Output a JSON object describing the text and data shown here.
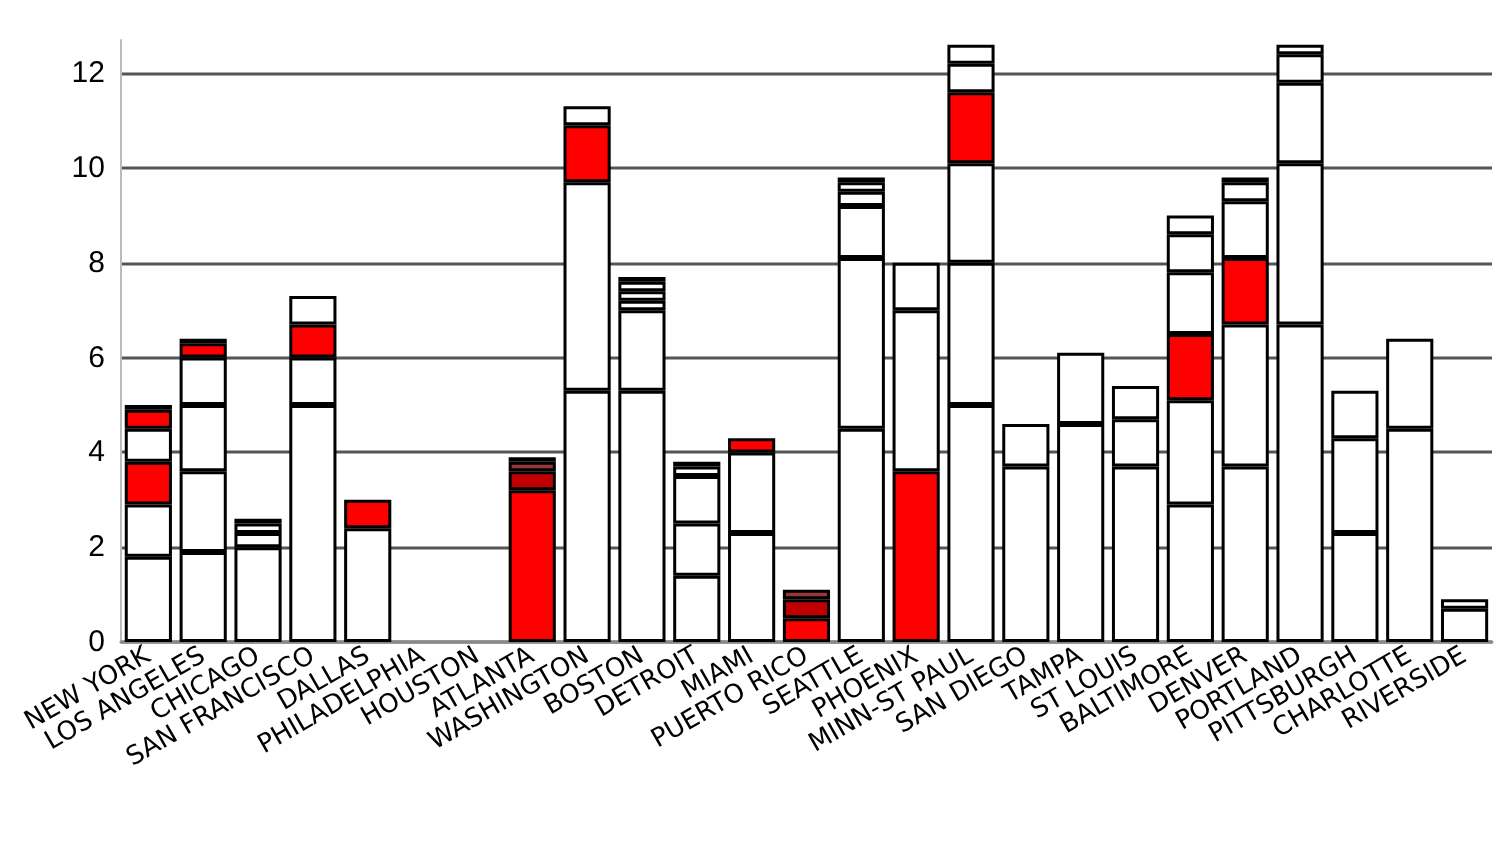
{
  "chart_data": {
    "type": "bar",
    "stacked": true,
    "grid": "y",
    "categories": [
      "NEW YORK",
      "LOS ANGELES",
      "CHICAGO",
      "SAN FRANCISCO",
      "DALLAS",
      "PHILADELPHIA",
      "HOUSTON",
      "ATLANTA",
      "WASHINGTON",
      "BOSTON",
      "DETROIT",
      "MIAMI",
      "PUERTO RICO",
      "SEATTLE",
      "PHOENIX",
      "MINN-ST PAUL",
      "SAN DIEGO",
      "TAMPA",
      "ST LOUIS",
      "BALTIMORE",
      "DENVER",
      "PORTLAND",
      "PITTSBURGH",
      "CHARLOTTE",
      "RIVERSIDE"
    ],
    "ylim": [
      0,
      12.7
    ],
    "yticks": [
      0,
      2,
      4,
      6,
      8,
      10,
      12
    ],
    "series": [
      {
        "values": [
          1.8,
          1.9,
          2.0,
          5.0,
          2.4,
          null,
          null,
          3.2,
          5.3,
          5.3,
          1.4,
          2.3,
          0.5,
          4.5,
          3.6,
          5.0,
          3.7,
          4.6,
          3.7,
          2.9,
          3.7,
          6.7,
          2.3,
          4.5,
          0.7
        ],
        "colors": [
          "#ffffff",
          "#ffffff",
          "#ffffff",
          "#ffffff",
          "#ffffff",
          null,
          null,
          "#ff0000",
          "#ffffff",
          "#ffffff",
          "#ffffff",
          "#ffffff",
          "#ff0000",
          "#ffffff",
          "#ff0000",
          "#ffffff",
          "#ffffff",
          "#ffffff",
          "#ffffff",
          "#ffffff",
          "#ffffff",
          "#ffffff",
          "#ffffff",
          "#ffffff",
          "#ffffff"
        ]
      },
      {
        "values": [
          1.1,
          1.7,
          0.3,
          1.0,
          0.6,
          null,
          null,
          0.4,
          4.4,
          1.7,
          1.1,
          1.7,
          0.4,
          3.6,
          3.4,
          3.0,
          0.9,
          1.5,
          1.0,
          2.2,
          3.0,
          3.4,
          2.0,
          1.9,
          0.2
        ],
        "colors": [
          "#ffffff",
          "#ffffff",
          "#ffffff",
          "#ffffff",
          "#ff0000",
          null,
          null,
          "#c00000",
          "#ffffff",
          "#ffffff",
          "#ffffff",
          "#ffffff",
          "#c00000",
          "#ffffff",
          "#ffffff",
          "#ffffff",
          "#ffffff",
          "#ffffff",
          "#ffffff",
          "#ffffff",
          "#ffffff",
          "#ffffff",
          "#ffffff",
          "#ffffff",
          "#ffffff"
        ]
      },
      {
        "values": [
          0.9,
          1.4,
          0.2,
          0.7,
          null,
          null,
          null,
          0.2,
          1.2,
          0.2,
          1.0,
          0.3,
          0.2,
          1.1,
          1.0,
          2.1,
          null,
          null,
          0.7,
          1.4,
          1.4,
          1.7,
          1.0,
          null,
          null
        ],
        "colors": [
          "#ff0000",
          "#ffffff",
          "#ffffff",
          "#ff0000",
          null,
          null,
          null,
          "#953735",
          "#ff0000",
          "#ffffff",
          "#ffffff",
          "#ff0000",
          "#953735",
          "#ffffff",
          "#ffffff",
          "#ffffff",
          null,
          null,
          "#ffffff",
          "#ff0000",
          "#ff0000",
          "#ffffff",
          "#ffffff",
          null,
          null
        ]
      },
      {
        "values": [
          0.7,
          1.0,
          0.1,
          0.6,
          null,
          null,
          null,
          0.1,
          0.4,
          0.2,
          0.2,
          null,
          null,
          0.3,
          null,
          1.5,
          null,
          null,
          null,
          1.3,
          1.2,
          0.6,
          null,
          null,
          null
        ],
        "colors": [
          "#ffffff",
          "#ffffff",
          "#ffffff",
          "#ffffff",
          null,
          null,
          null,
          "#ffffff",
          "#ffffff",
          "#ffffff",
          "#ffffff",
          null,
          null,
          "#ffffff",
          null,
          "#ff0000",
          null,
          null,
          null,
          "#ffffff",
          "#ffffff",
          "#ffffff",
          null,
          null,
          null
        ]
      },
      {
        "values": [
          0.4,
          0.3,
          null,
          null,
          null,
          null,
          null,
          null,
          null,
          0.2,
          0.1,
          null,
          null,
          0.2,
          null,
          0.6,
          null,
          null,
          null,
          0.8,
          0.4,
          0.2,
          null,
          null,
          null
        ],
        "colors": [
          "#ff0000",
          "#ff0000",
          null,
          null,
          null,
          null,
          null,
          null,
          null,
          "#ffffff",
          "#ffffff",
          null,
          null,
          "#ffffff",
          null,
          "#ffffff",
          null,
          null,
          null,
          "#ffffff",
          "#ffffff",
          "#ffffff",
          null,
          null,
          null
        ]
      },
      {
        "values": [
          0.1,
          0.1,
          null,
          null,
          null,
          null,
          null,
          null,
          null,
          0.1,
          null,
          null,
          null,
          0.1,
          null,
          0.4,
          null,
          null,
          null,
          0.4,
          0.1,
          null,
          null,
          null,
          null
        ],
        "colors": [
          "#ffffff",
          "#ffffff",
          null,
          null,
          null,
          null,
          null,
          null,
          null,
          "#ffffff",
          null,
          null,
          null,
          "#ffffff",
          null,
          "#ffffff",
          null,
          null,
          null,
          "#ffffff",
          "#ffffff",
          null,
          null,
          null,
          null
        ]
      }
    ]
  }
}
